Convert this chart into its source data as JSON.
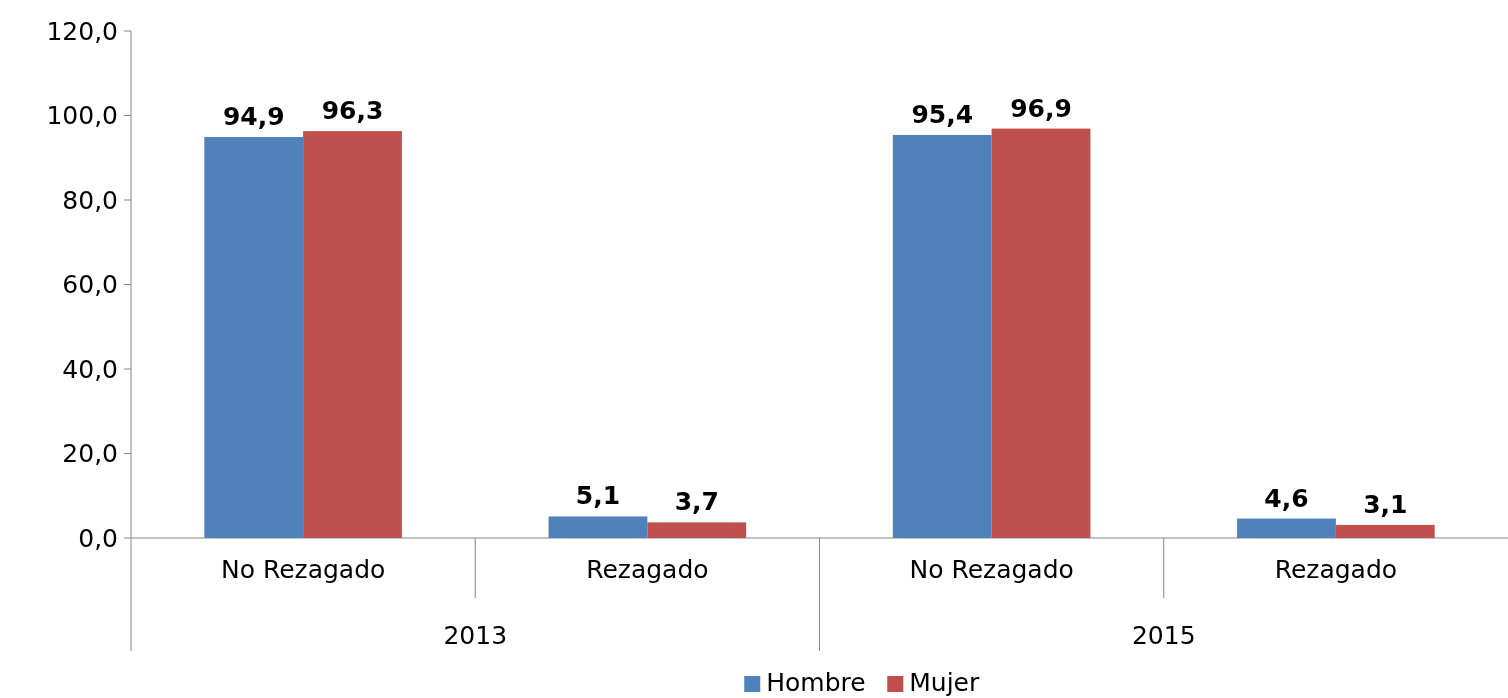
{
  "chart_data": {
    "type": "bar",
    "categories": [
      "No Rezagado",
      "Rezagado",
      "No Rezagado",
      "Rezagado"
    ],
    "series": [
      {
        "name": "Hombre",
        "color": "#4f81bd",
        "values": [
          94.9,
          5.1,
          95.4,
          4.6
        ],
        "value_labels": [
          "94,9",
          "5,1",
          "95,4",
          "4,6"
        ]
      },
      {
        "name": "Mujer",
        "color": "#c0504d",
        "values": [
          96.3,
          3.7,
          96.9,
          3.1
        ],
        "value_labels": [
          "96,3",
          "3,7",
          "96,9",
          "3,1"
        ]
      }
    ],
    "ylim": [
      0,
      120
    ],
    "yticks": [
      {
        "value": 0,
        "label": "0,0"
      },
      {
        "value": 20,
        "label": "20,0"
      },
      {
        "value": 40,
        "label": "40,0"
      },
      {
        "value": 60,
        "label": "60,0"
      },
      {
        "value": 80,
        "label": "80,0"
      },
      {
        "value": 100,
        "label": "100,0"
      },
      {
        "value": 120,
        "label": "120,0"
      }
    ],
    "annotations": [
      "2013",
      "2015"
    ],
    "grid": false,
    "legend": "bottom"
  }
}
